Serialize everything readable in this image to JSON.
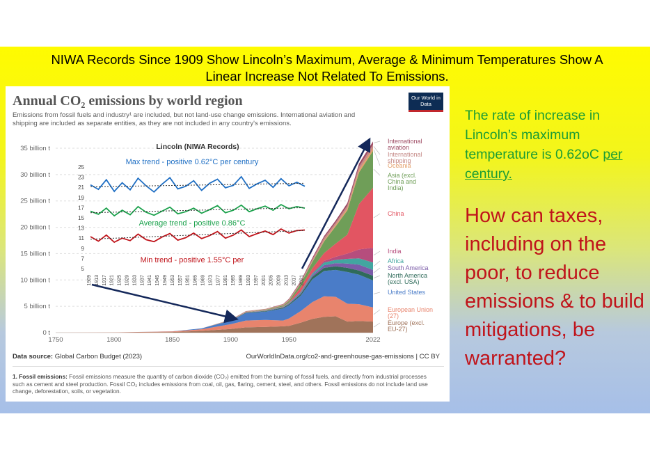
{
  "headline": {
    "line1": "NIWA Records Since 1909 Show Lincoln’s Maximum, Average & Minimum Temperatures Show A",
    "line2": "Linear Increase Not Related To Emissions."
  },
  "owid": {
    "title": "Annual CO₂ emissions by world region",
    "subtitle": "Emissions from fossil fuels and industry¹ are included, but not land-use change emissions. International aviation and shipping are included as separate entities, as they are not included in any country's emissions.",
    "logo": "Our World in Data",
    "source_label": "Data source:",
    "source_text": "Global Carbon Budget (2023)",
    "url": "OurWorldInData.org/co2-and-greenhouse-gas-emissions | CC BY",
    "footnote_bold": "1. Fossil emissions:",
    "footnote": "Fossil emissions measure the quantity of carbon dioxide (CO₂) emitted from the burning of fossil fuels, and directly from industrial processes such as cement and steel production. Fossil CO₂ includes emissions from coal, oil, gas, flaring, cement, steel, and others. Fossil emissions do not include land use change, deforestation, soils, or vegetation."
  },
  "side": {
    "green_text": "The rate of increase in Lincoln’s maximum temperature is 0.62oC",
    "green_link": "per century.",
    "red_text": "How can taxes, including on the poor, to reduce emissions & to build mitigations, be warranted?"
  },
  "chart_data": [
    {
      "type": "area",
      "title": "Annual CO₂ emissions by world region",
      "xlim": [
        1750,
        2022
      ],
      "ylim": [
        0,
        35
      ],
      "y_unit": "billion t",
      "x_ticks": [
        "1750",
        "1800",
        "1850",
        "1900",
        "1950",
        "2022"
      ],
      "y_ticks": [
        "0 t",
        "5 billion t",
        "10 billion t",
        "15 billion t",
        "20 billion t",
        "25 billion t",
        "30 billion t",
        "35 billion t"
      ],
      "x": [
        1750,
        1800,
        1850,
        1875,
        1900,
        1913,
        1930,
        1945,
        1950,
        1960,
        1970,
        1980,
        1990,
        2000,
        2010,
        2022
      ],
      "series": [
        {
          "name": "Europe (excl. EU-27)",
          "color": "#a0735a",
          "values": [
            0.01,
            0.03,
            0.12,
            0.35,
            0.7,
            1.0,
            1.1,
            1.2,
            1.3,
            1.9,
            2.6,
            3.0,
            3.1,
            2.1,
            2.2,
            2.1
          ]
        },
        {
          "name": "European Union (27)",
          "color": "#e8846d",
          "values": [
            0.0,
            0.02,
            0.1,
            0.3,
            0.9,
            1.3,
            1.3,
            1.1,
            1.4,
            2.2,
            3.2,
            3.9,
            3.7,
            3.4,
            3.2,
            2.7
          ]
        },
        {
          "name": "United States",
          "color": "#4a7cc8",
          "values": [
            0.0,
            0.0,
            0.03,
            0.15,
            0.65,
            1.4,
            1.6,
            2.3,
            2.5,
            2.9,
            4.3,
            4.8,
            5.1,
            6.0,
            5.6,
            5.1
          ]
        },
        {
          "name": "North America (excl. USA)",
          "color": "#2f6b5a",
          "values": [
            0.0,
            0.0,
            0.0,
            0.01,
            0.05,
            0.1,
            0.1,
            0.15,
            0.2,
            0.3,
            0.5,
            0.6,
            0.7,
            0.8,
            0.8,
            0.9
          ]
        },
        {
          "name": "South America",
          "color": "#7b5ca8",
          "values": [
            0.0,
            0.0,
            0.0,
            0.0,
            0.01,
            0.03,
            0.05,
            0.07,
            0.1,
            0.2,
            0.3,
            0.5,
            0.6,
            0.8,
            1.1,
            1.1
          ]
        },
        {
          "name": "Africa",
          "color": "#42a6a0",
          "values": [
            0.0,
            0.0,
            0.0,
            0.0,
            0.01,
            0.02,
            0.04,
            0.06,
            0.1,
            0.2,
            0.3,
            0.5,
            0.6,
            0.9,
            1.2,
            1.4
          ]
        },
        {
          "name": "India",
          "color": "#b64d7d",
          "values": [
            0.0,
            0.0,
            0.0,
            0.0,
            0.02,
            0.03,
            0.05,
            0.06,
            0.07,
            0.1,
            0.2,
            0.3,
            0.6,
            1.0,
            1.7,
            2.8
          ]
        },
        {
          "name": "China",
          "color": "#e25562",
          "values": [
            0.0,
            0.0,
            0.0,
            0.0,
            0.0,
            0.01,
            0.02,
            0.03,
            0.08,
            0.8,
            0.8,
            1.5,
            2.5,
            3.6,
            8.6,
            11.4
          ]
        },
        {
          "name": "Asia (excl. China and India)",
          "color": "#6f9e58",
          "values": [
            0.0,
            0.0,
            0.0,
            0.0,
            0.02,
            0.05,
            0.1,
            0.2,
            0.3,
            0.7,
            1.2,
            2.2,
            3.3,
            4.6,
            6.0,
            7.0
          ]
        },
        {
          "name": "Oceania",
          "color": "#e3a06a",
          "values": [
            0.0,
            0.0,
            0.0,
            0.0,
            0.01,
            0.01,
            0.02,
            0.03,
            0.03,
            0.05,
            0.1,
            0.2,
            0.3,
            0.4,
            0.5,
            0.5
          ]
        },
        {
          "name": "International shipping",
          "color": "#c58a87",
          "values": [
            0.0,
            0.0,
            0.0,
            0.0,
            0.1,
            0.15,
            0.15,
            0.2,
            0.25,
            0.3,
            0.4,
            0.5,
            0.4,
            0.5,
            0.6,
            0.7
          ]
        },
        {
          "name": "International aviation",
          "color": "#9e4c64",
          "values": [
            0.0,
            0.0,
            0.0,
            0.0,
            0.0,
            0.0,
            0.0,
            0.05,
            0.1,
            0.15,
            0.3,
            0.3,
            0.4,
            0.5,
            0.6,
            0.6
          ]
        }
      ]
    },
    {
      "type": "line",
      "title": "Lincoln (NIWA Records)",
      "xlim": [
        1909,
        2022
      ],
      "ylim": [
        5,
        25
      ],
      "x_ticks": [
        "1909",
        "1913",
        "1917",
        "1921",
        "1925",
        "1929",
        "1933",
        "1937",
        "1941",
        "1945",
        "1949",
        "1953",
        "1957",
        "1961",
        "1965",
        "1969",
        "1973",
        "1977",
        "1981",
        "1985",
        "1989",
        "1993",
        "1997",
        "2001",
        "2005",
        "2009",
        "2013",
        "2017",
        "2021"
      ],
      "y_ticks": [
        "5",
        "7",
        "9",
        "11",
        "13",
        "15",
        "17",
        "19",
        "21",
        "23",
        "25"
      ],
      "series": [
        {
          "name": "Max",
          "color": "#1f6fc4",
          "trend_label": "Max trend - positive 0.62°C per century",
          "trend": [
            21.1,
            21.8
          ],
          "values": [
            21.5,
            20.6,
            22.5,
            20.2,
            21.9,
            20.5,
            22.8,
            21.3,
            20.1,
            21.6,
            22.9,
            20.7,
            21.2,
            22.3,
            20.4,
            21.8,
            22.6,
            20.9,
            21.4,
            23.1,
            20.8,
            21.7,
            22.4,
            21.0,
            22.7,
            21.3,
            22.0,
            21.2
          ]
        },
        {
          "name": "Average",
          "color": "#1aa14b",
          "trend_label": "Average trend - positive 0.86°C",
          "trend": [
            16.0,
            17.0
          ],
          "values": [
            16.3,
            15.7,
            16.9,
            15.4,
            16.5,
            15.6,
            17.2,
            16.1,
            15.5,
            16.3,
            17.1,
            15.8,
            16.2,
            16.9,
            15.9,
            16.6,
            17.4,
            16.0,
            16.5,
            17.5,
            16.2,
            16.8,
            17.3,
            16.5,
            17.6,
            16.8,
            17.2,
            16.9
          ]
        },
        {
          "name": "Min",
          "color": "#c0141b",
          "trend_label": "Min trend - positive 1.55°C per",
          "trend": [
            10.8,
            12.5
          ],
          "values": [
            11.3,
            10.4,
            11.6,
            10.2,
            11.0,
            10.5,
            11.8,
            10.7,
            10.3,
            11.2,
            11.9,
            10.6,
            11.1,
            12.0,
            10.9,
            11.5,
            12.3,
            11.0,
            11.6,
            12.6,
            11.3,
            11.9,
            12.4,
            11.7,
            12.8,
            12.0,
            12.5,
            12.6
          ]
        }
      ]
    }
  ]
}
